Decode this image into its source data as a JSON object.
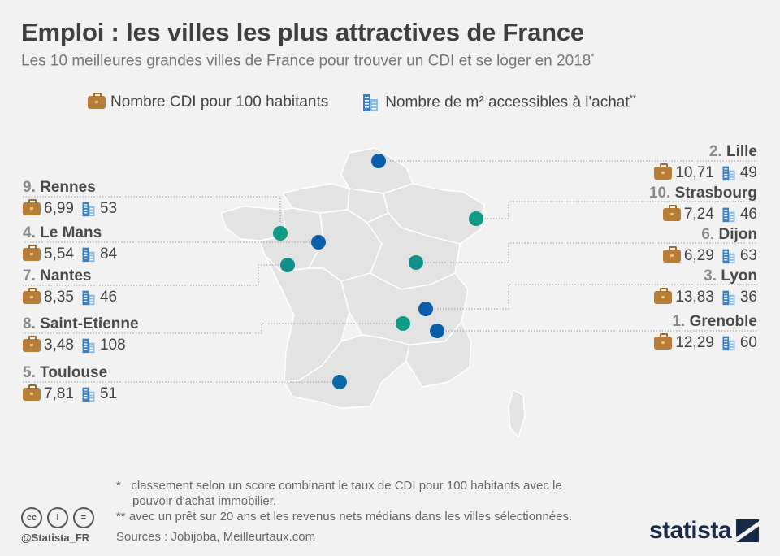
{
  "title": "Emploi : les villes les plus attractives de France",
  "subtitle": "Les 10 meilleures grandes villes de France pour trouver un CDI et se loger en 2018",
  "subtitle_mark": "*",
  "legend": {
    "cdi": "Nombre CDI pour 100 habitants",
    "m2": "Nombre de m² accessibles à l'achat",
    "m2_mark": "**"
  },
  "colors": {
    "blue_dot": "#0b5ea8",
    "teal_dot": "#0f9a87",
    "map": "#e3e3e3",
    "map_border": "#ffffff",
    "leader": "#999999"
  },
  "cities": {
    "lille": {
      "rank": "2.",
      "name": "Lille",
      "cdi": "10,71",
      "m2": "49"
    },
    "strasbourg": {
      "rank": "10.",
      "name": "Strasbourg",
      "cdi": "7,24",
      "m2": "46"
    },
    "dijon": {
      "rank": "6.",
      "name": "Dijon",
      "cdi": "6,29",
      "m2": "63"
    },
    "lyon": {
      "rank": "3.",
      "name": "Lyon",
      "cdi": "13,83",
      "m2": "36"
    },
    "grenoble": {
      "rank": "1.",
      "name": "Grenoble",
      "cdi": "12,29",
      "m2": "60"
    },
    "rennes": {
      "rank": "9.",
      "name": "Rennes",
      "cdi": "6,99",
      "m2": "53"
    },
    "lemans": {
      "rank": "4.",
      "name": "Le Mans",
      "cdi": "5,54",
      "m2": "84"
    },
    "nantes": {
      "rank": "7.",
      "name": "Nantes",
      "cdi": "8,35",
      "m2": "46"
    },
    "stetienne": {
      "rank": "8.",
      "name": "Saint-Etienne",
      "cdi": "3,48",
      "m2": "108"
    },
    "toulouse": {
      "rank": "5.",
      "name": "Toulouse",
      "cdi": "7,81",
      "m2": "51"
    }
  },
  "footnotes": {
    "mark1": "*",
    "note1_line1": "classement selon un score combinant le taux de CDI pour 100 habitants avec le",
    "note1_line2": "pouvoir d'achat immobilier.",
    "note2": "** avec un prêt sur 20 ans et les revenus nets médians dans les villes sélectionnées.",
    "sources": "Sources : Jobijoba, Meilleurtaux.com"
  },
  "license": {
    "cc": "cc",
    "by": "i",
    "nd": "="
  },
  "handle": "@Statista_FR",
  "brand": "statista"
}
